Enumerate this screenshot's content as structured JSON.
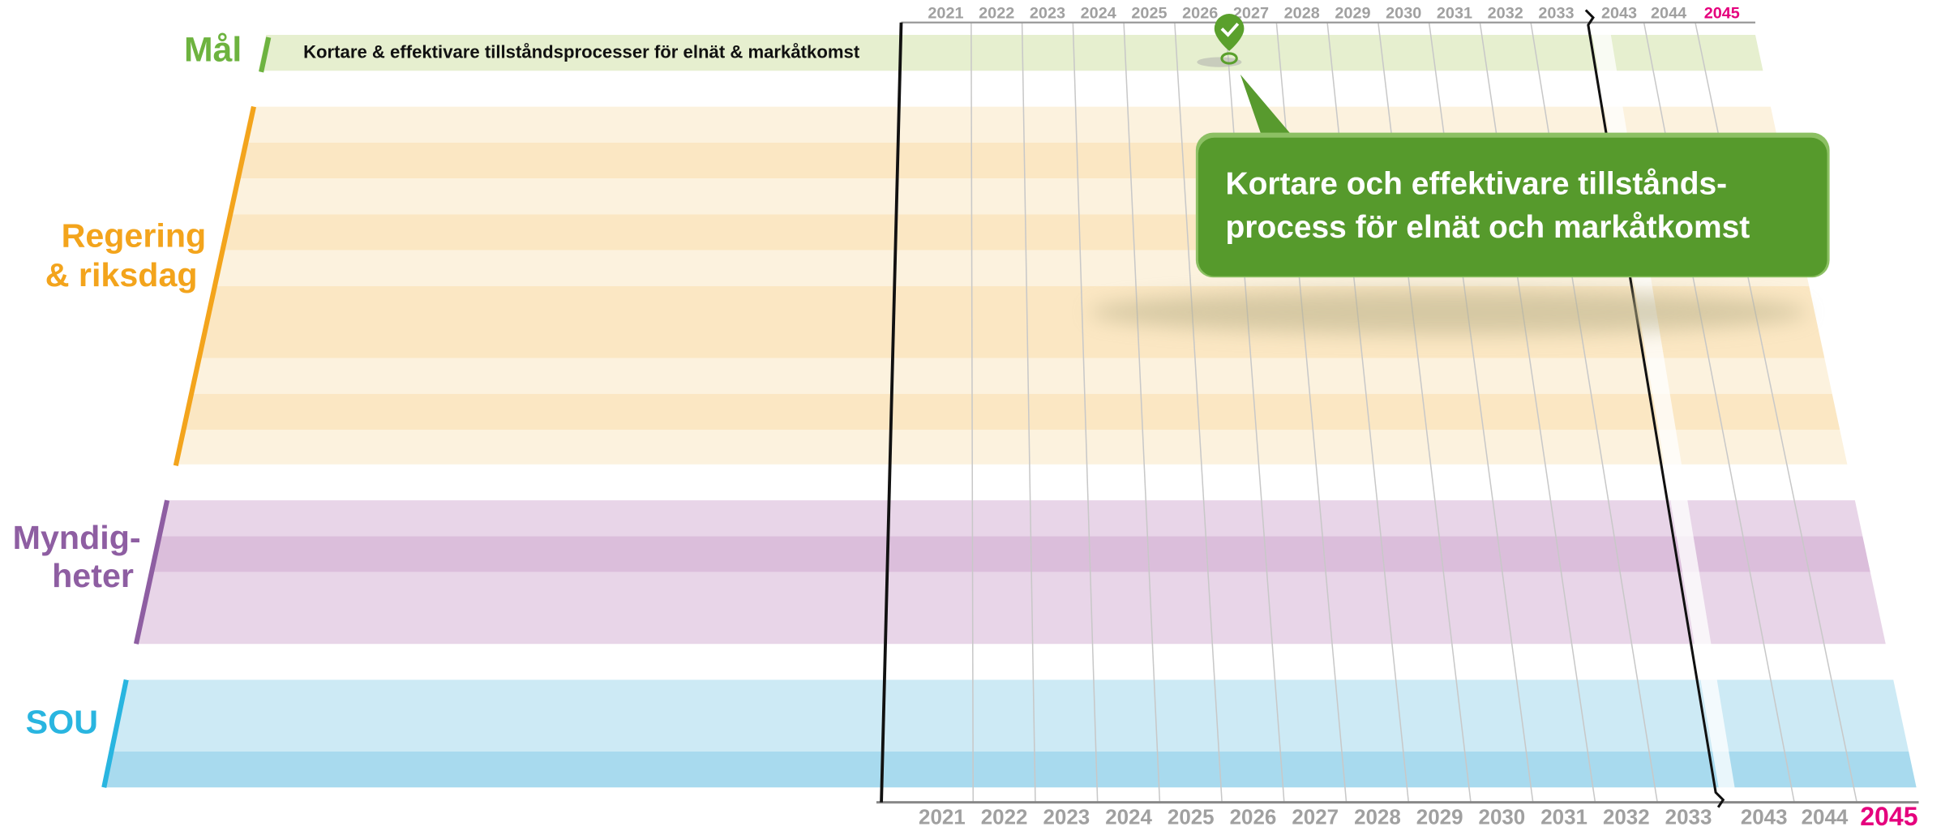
{
  "goal_row": {
    "label": "Mål",
    "text": "Kortare & effektivare tillståndsprocesser för elnät & markåtkomst"
  },
  "groups": [
    {
      "label_lines": [
        "Regering",
        "& riksdag"
      ]
    },
    {
      "label_lines": [
        "Myndig-",
        "heter"
      ]
    },
    {
      "label_lines": [
        "SOU"
      ]
    }
  ],
  "timeline": {
    "top_years": [
      2021,
      2022,
      2023,
      2024,
      2025,
      2026,
      2027,
      2028,
      2029,
      2030,
      2031,
      2032,
      2033,
      2043,
      2044,
      2045
    ],
    "bottom_years": [
      2021,
      2022,
      2023,
      2024,
      2025,
      2026,
      2027,
      2028,
      2029,
      2030,
      2031,
      2032,
      2033,
      2043,
      2044,
      2045
    ]
  },
  "callout": {
    "lines": [
      "Kortare och effektivare tillstånds-",
      "process för elnät och markåtkomst"
    ]
  }
}
